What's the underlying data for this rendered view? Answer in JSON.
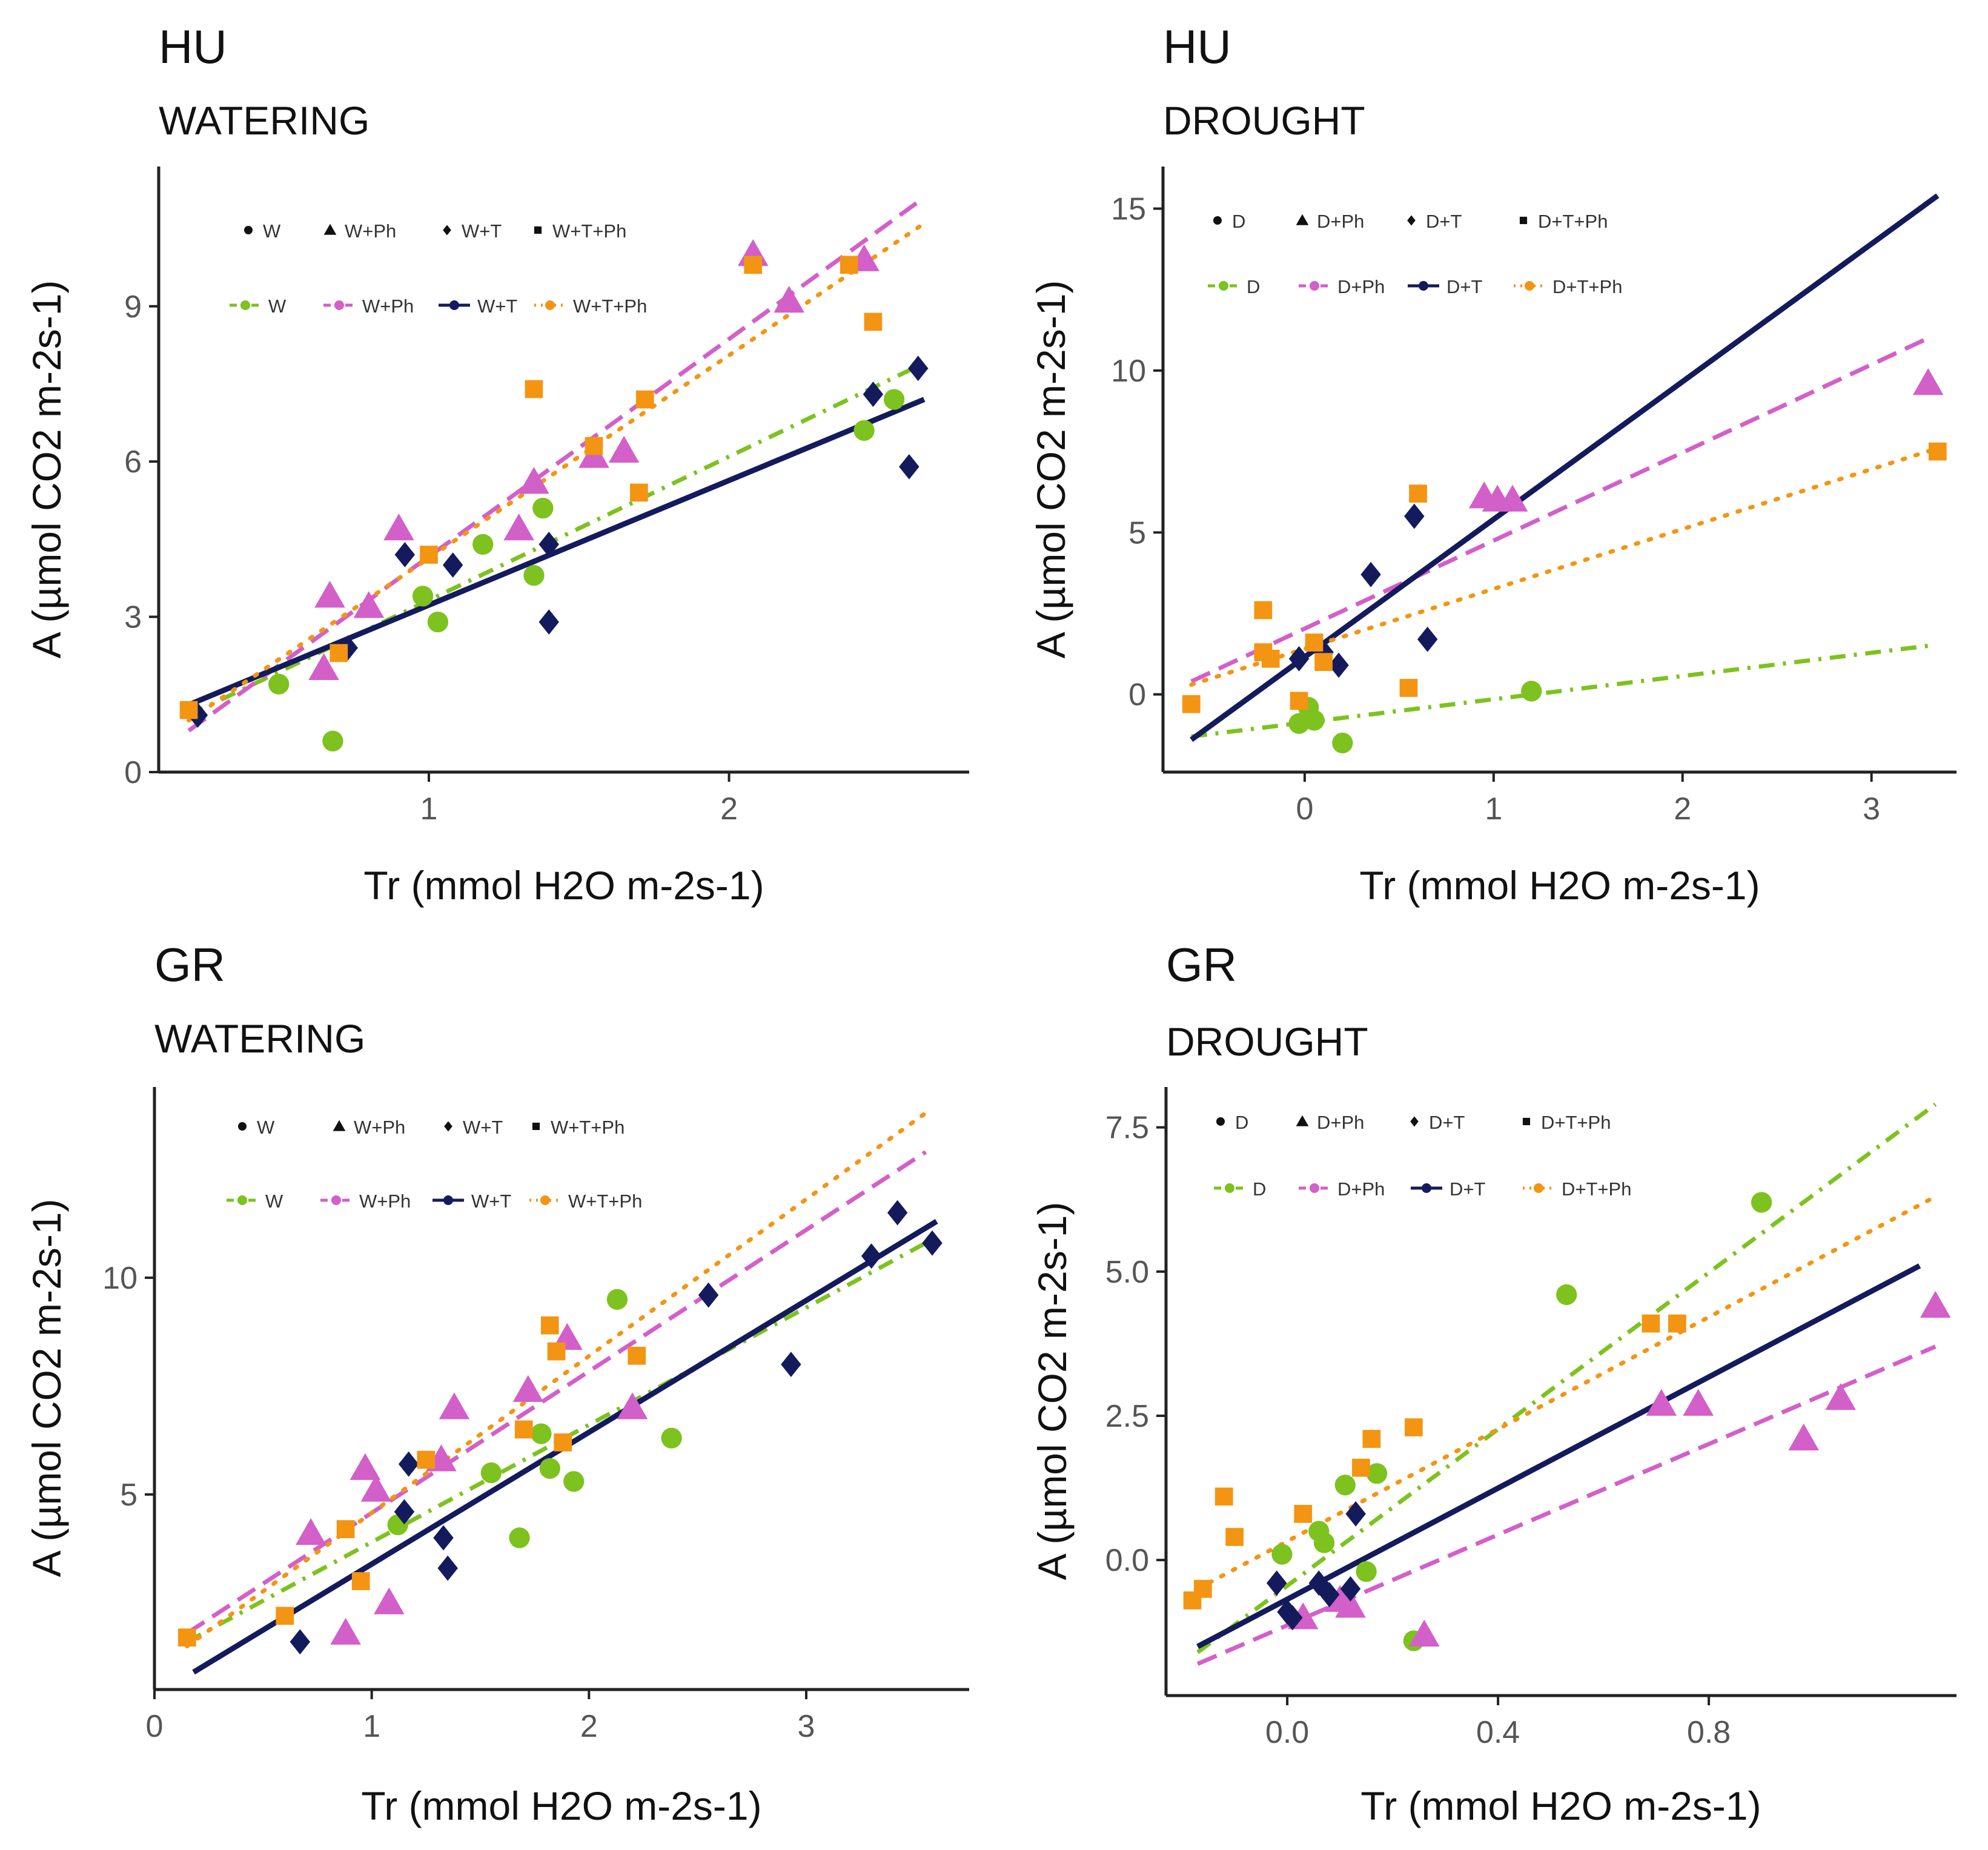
{
  "colors": {
    "W": "#7dc21e",
    "Ph": "#d35fc9",
    "T": "#141b5c",
    "TPh": "#f39512",
    "axis": "#222222",
    "tick_text": "#555555"
  },
  "chart_data": [
    {
      "type": "scatter",
      "id": "hu-watering",
      "country": "HU",
      "condition": "WATERING",
      "xlabel": "Tr (mmol H2O m-2s-1)",
      "ylabel": "A (µmol CO2 m-2s-1)",
      "xlim": [
        0.1,
        2.8
      ],
      "ylim": [
        0,
        11.7
      ],
      "xticks": [
        1,
        2
      ],
      "yticks": [
        0,
        3,
        6,
        9
      ],
      "xtick_labels": [
        "1",
        "2"
      ],
      "ytick_labels": [
        "0",
        "3",
        "6",
        "9"
      ],
      "legend_label": "",
      "legend_shape_items": [
        "W",
        "W+Ph",
        "W+T",
        "W+T+Ph"
      ],
      "legend_line_items": [
        "W",
        "W+Ph",
        "W+T",
        "W+T+Ph"
      ],
      "series": [
        {
          "name": "W",
          "color_key": "W",
          "marker": "circle",
          "line_style": "dashdot",
          "fit": [
            [
              0.2,
              1.1
            ],
            [
              2.65,
              7.9
            ]
          ],
          "points": [
            [
              0.5,
              1.7
            ],
            [
              0.68,
              0.6
            ],
            [
              0.98,
              3.4
            ],
            [
              1.03,
              2.9
            ],
            [
              1.18,
              4.4
            ],
            [
              1.35,
              3.8
            ],
            [
              1.38,
              5.1
            ],
            [
              2.45,
              6.6
            ],
            [
              2.55,
              7.2
            ]
          ]
        },
        {
          "name": "W+Ph",
          "color_key": "Ph",
          "marker": "triangle",
          "line_style": "dashed",
          "fit": [
            [
              0.2,
              0.8
            ],
            [
              2.65,
              11.1
            ]
          ],
          "points": [
            [
              0.65,
              2.0
            ],
            [
              0.67,
              3.4
            ],
            [
              0.8,
              3.2
            ],
            [
              0.9,
              4.7
            ],
            [
              1.3,
              4.7
            ],
            [
              1.35,
              5.6
            ],
            [
              1.55,
              6.1
            ],
            [
              1.65,
              6.2
            ],
            [
              2.08,
              10.0
            ],
            [
              2.2,
              9.1
            ],
            [
              2.45,
              9.9
            ]
          ]
        },
        {
          "name": "W+T",
          "color_key": "T",
          "marker": "diamond",
          "line_style": "solid",
          "fit": [
            [
              0.2,
              1.3
            ],
            [
              2.65,
              7.2
            ]
          ],
          "points": [
            [
              0.23,
              1.1
            ],
            [
              0.73,
              2.4
            ],
            [
              0.92,
              4.2
            ],
            [
              1.08,
              4.0
            ],
            [
              1.4,
              4.4
            ],
            [
              1.4,
              2.9
            ],
            [
              2.48,
              7.3
            ],
            [
              2.6,
              5.9
            ],
            [
              2.63,
              7.8
            ]
          ]
        },
        {
          "name": "W+T+Ph",
          "color_key": "TPh",
          "marker": "square",
          "line_style": "dotted",
          "fit": [
            [
              0.2,
              1.0
            ],
            [
              2.65,
              10.6
            ]
          ],
          "points": [
            [
              0.2,
              1.2
            ],
            [
              0.7,
              2.3
            ],
            [
              1.0,
              4.2
            ],
            [
              1.35,
              7.4
            ],
            [
              1.55,
              6.3
            ],
            [
              1.7,
              5.4
            ],
            [
              1.72,
              7.2
            ],
            [
              2.08,
              9.8
            ],
            [
              2.4,
              9.8
            ],
            [
              2.48,
              8.7
            ]
          ]
        }
      ]
    },
    {
      "type": "scatter",
      "id": "hu-drought",
      "country": "HU",
      "condition": "DROUGHT",
      "xlabel": "Tr (mmol H2O m-2s-1)",
      "ylabel": "A (µmol CO2 m-2s-1)",
      "xlim": [
        -0.75,
        3.45
      ],
      "ylim": [
        -2.4,
        16.3
      ],
      "xticks": [
        0,
        1,
        2,
        3
      ],
      "yticks": [
        0,
        5,
        10,
        15
      ],
      "xtick_labels": [
        "0",
        "1",
        "2",
        "3"
      ],
      "ytick_labels": [
        "0",
        "5",
        "10",
        "15"
      ],
      "legend_label": "",
      "legend_shape_items": [
        "D",
        "D+Ph",
        "D+T",
        "D+T+Ph"
      ],
      "legend_line_items": [
        "D",
        "D+Ph",
        "D+T",
        "D+T+Ph"
      ],
      "series": [
        {
          "name": "D",
          "color_key": "W",
          "marker": "circle",
          "line_style": "dashdot",
          "fit": [
            [
              -0.6,
              -1.3
            ],
            [
              3.3,
              1.5
            ]
          ],
          "points": [
            [
              -0.03,
              -0.9
            ],
            [
              0.02,
              -0.4
            ],
            [
              0.05,
              -0.8
            ],
            [
              0.2,
              -1.5
            ],
            [
              1.2,
              0.1
            ]
          ]
        },
        {
          "name": "D+Ph",
          "color_key": "Ph",
          "marker": "triangle",
          "line_style": "dashed",
          "fit": [
            [
              -0.6,
              0.4
            ],
            [
              3.3,
              11.0
            ]
          ],
          "points": [
            [
              0.95,
              6.1
            ],
            [
              1.02,
              6.0
            ],
            [
              1.1,
              6.0
            ],
            [
              3.3,
              9.6
            ]
          ]
        },
        {
          "name": "D+T",
          "color_key": "T",
          "marker": "diamond",
          "line_style": "solid",
          "fit": [
            [
              -0.6,
              -1.4
            ],
            [
              3.35,
              15.4
            ]
          ],
          "points": [
            [
              -0.03,
              1.1
            ],
            [
              0.1,
              1.3
            ],
            [
              0.18,
              0.9
            ],
            [
              0.35,
              3.7
            ],
            [
              0.58,
              5.5
            ],
            [
              0.65,
              1.7
            ]
          ]
        },
        {
          "name": "D+T+Ph",
          "color_key": "TPh",
          "marker": "square",
          "line_style": "dotted",
          "fit": [
            [
              -0.6,
              0.3
            ],
            [
              3.35,
              7.6
            ]
          ],
          "points": [
            [
              -0.6,
              -0.3
            ],
            [
              -0.22,
              2.6
            ],
            [
              -0.22,
              1.3
            ],
            [
              -0.18,
              1.1
            ],
            [
              -0.03,
              -0.2
            ],
            [
              0.05,
              1.6
            ],
            [
              0.1,
              1.0
            ],
            [
              0.55,
              0.2
            ],
            [
              0.6,
              6.2
            ],
            [
              3.35,
              7.5
            ]
          ]
        }
      ]
    },
    {
      "type": "scatter",
      "id": "gr-watering",
      "country": "GR",
      "condition": "WATERING",
      "xlabel": "Tr (mmol H2O m-2s-1)",
      "ylabel": "A (µmol CO2 m-2s-1)",
      "xlim": [
        0,
        3.75
      ],
      "ylim": [
        0.5,
        14.4
      ],
      "xticks": [
        0,
        1,
        2,
        3
      ],
      "yticks": [
        5,
        10
      ],
      "xtick_labels": [
        "0",
        "1",
        "2",
        "3"
      ],
      "ytick_labels": [
        "5",
        "10"
      ],
      "legend_label": "",
      "legend_shape_items": [
        "W",
        "W+Ph",
        "W+T",
        "W+T+Ph"
      ],
      "legend_line_items": [
        "W",
        "W+Ph",
        "W+T",
        "W+T+Ph"
      ],
      "series": [
        {
          "name": "W",
          "color_key": "W",
          "marker": "circle",
          "line_style": "dashdot",
          "fit": [
            [
              0.15,
              1.6
            ],
            [
              3.55,
              10.8
            ]
          ],
          "points": [
            [
              1.12,
              4.3
            ],
            [
              1.55,
              5.5
            ],
            [
              1.68,
              4.0
            ],
            [
              1.78,
              6.4
            ],
            [
              1.82,
              5.6
            ],
            [
              1.93,
              5.3
            ],
            [
              2.13,
              9.5
            ],
            [
              2.38,
              6.3
            ]
          ]
        },
        {
          "name": "W+Ph",
          "color_key": "Ph",
          "marker": "triangle",
          "line_style": "dashed",
          "fit": [
            [
              0.15,
              1.8
            ],
            [
              3.55,
              12.9
            ]
          ],
          "points": [
            [
              0.72,
              4.1
            ],
            [
              0.88,
              1.8
            ],
            [
              0.97,
              5.6
            ],
            [
              1.02,
              5.1
            ],
            [
              1.08,
              2.5
            ],
            [
              1.32,
              5.8
            ],
            [
              1.38,
              7.0
            ],
            [
              1.72,
              7.4
            ],
            [
              1.9,
              8.6
            ],
            [
              2.2,
              7.0
            ]
          ]
        },
        {
          "name": "W+T",
          "color_key": "T",
          "marker": "diamond",
          "line_style": "solid",
          "fit": [
            [
              0.18,
              0.9
            ],
            [
              3.6,
              11.3
            ]
          ],
          "points": [
            [
              0.67,
              1.6
            ],
            [
              1.15,
              4.6
            ],
            [
              1.17,
              5.7
            ],
            [
              1.33,
              4.0
            ],
            [
              1.35,
              3.3
            ],
            [
              2.55,
              9.6
            ],
            [
              2.93,
              8.0
            ],
            [
              3.3,
              10.5
            ],
            [
              3.42,
              11.5
            ],
            [
              3.58,
              10.8
            ]
          ]
        },
        {
          "name": "W+T+Ph",
          "color_key": "TPh",
          "marker": "square",
          "line_style": "dotted",
          "fit": [
            [
              0.15,
              1.5
            ],
            [
              3.55,
              13.8
            ]
          ],
          "points": [
            [
              0.15,
              1.7
            ],
            [
              0.6,
              2.2
            ],
            [
              0.88,
              4.2
            ],
            [
              0.95,
              3.0
            ],
            [
              1.25,
              5.8
            ],
            [
              1.7,
              6.5
            ],
            [
              1.82,
              8.9
            ],
            [
              1.85,
              8.3
            ],
            [
              1.88,
              6.2
            ],
            [
              2.22,
              8.2
            ]
          ]
        }
      ]
    },
    {
      "type": "scatter",
      "id": "gr-drought",
      "country": "GR",
      "condition": "DROUGHT",
      "xlabel": "Tr (mmol H2O m-2s-1)",
      "ylabel": "A (µmol CO2 m-2s-1)",
      "xlim": [
        -0.23,
        1.27
      ],
      "ylim": [
        -2.35,
        8.2
      ],
      "xticks": [
        0,
        0.4,
        0.8
      ],
      "yticks": [
        0,
        2.5,
        5,
        7.5
      ],
      "xtick_labels": [
        "0.0",
        "0.4",
        "0.8"
      ],
      "ytick_labels": [
        "0.0",
        "2.5",
        "5.0",
        "7.5"
      ],
      "legend_label": "",
      "legend_shape_items": [
        "D",
        "D+Ph",
        "D+T",
        "D+T+Ph"
      ],
      "legend_line_items": [
        "D",
        "D+Ph",
        "D+T",
        "D+T+Ph"
      ],
      "series": [
        {
          "name": "D",
          "color_key": "W",
          "marker": "circle",
          "line_style": "dashdot",
          "fit": [
            [
              -0.17,
              -1.6
            ],
            [
              1.23,
              7.9
            ]
          ],
          "points": [
            [
              -0.01,
              0.1
            ],
            [
              0.06,
              0.5
            ],
            [
              0.07,
              0.3
            ],
            [
              0.11,
              1.3
            ],
            [
              0.15,
              -0.2
            ],
            [
              0.17,
              1.5
            ],
            [
              0.24,
              -1.4
            ],
            [
              0.53,
              4.6
            ],
            [
              0.9,
              6.2
            ]
          ]
        },
        {
          "name": "D+Ph",
          "color_key": "Ph",
          "marker": "triangle",
          "line_style": "dashed",
          "fit": [
            [
              -0.17,
              -1.8
            ],
            [
              1.23,
              3.7
            ]
          ],
          "points": [
            [
              0.03,
              -1.0
            ],
            [
              0.1,
              -0.7
            ],
            [
              0.12,
              -0.8
            ],
            [
              0.26,
              -1.3
            ],
            [
              0.71,
              2.7
            ],
            [
              0.78,
              2.7
            ],
            [
              0.98,
              2.1
            ],
            [
              1.05,
              2.8
            ],
            [
              1.23,
              4.4
            ]
          ]
        },
        {
          "name": "D+T",
          "color_key": "T",
          "marker": "diamond",
          "line_style": "solid",
          "fit": [
            [
              -0.17,
              -1.5
            ],
            [
              1.2,
              5.1
            ]
          ],
          "points": [
            [
              -0.02,
              -0.4
            ],
            [
              0.0,
              -0.9
            ],
            [
              0.01,
              -1.0
            ],
            [
              0.06,
              -0.4
            ],
            [
              0.08,
              -0.6
            ],
            [
              0.12,
              -0.5
            ],
            [
              0.13,
              0.8
            ]
          ]
        },
        {
          "name": "D+T+Ph",
          "color_key": "TPh",
          "marker": "square",
          "line_style": "dotted",
          "fit": [
            [
              -0.17,
              -0.5
            ],
            [
              1.23,
              6.3
            ]
          ],
          "points": [
            [
              -0.18,
              -0.7
            ],
            [
              -0.16,
              -0.5
            ],
            [
              -0.12,
              1.1
            ],
            [
              -0.1,
              0.4
            ],
            [
              0.03,
              0.8
            ],
            [
              0.14,
              1.6
            ],
            [
              0.16,
              2.1
            ],
            [
              0.24,
              2.3
            ],
            [
              0.69,
              4.1
            ],
            [
              0.74,
              4.1
            ]
          ]
        }
      ]
    }
  ]
}
